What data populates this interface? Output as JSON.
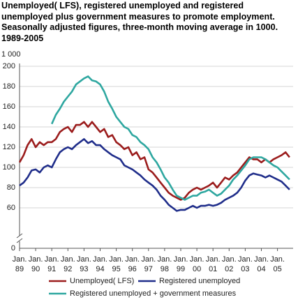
{
  "chart_data": {
    "type": "line",
    "title": "Unemployed( LFS), registered unemployed and registered unemployed plus government measures to promote employment. Seasonally adjusted figures, three-month moving average in 1000. 1989-2005",
    "y_unit_label": "1 000",
    "categories": [
      "Jan. 89",
      null,
      null,
      null,
      "Jan. 90",
      null,
      null,
      null,
      "Jan. 91",
      null,
      null,
      null,
      "Jan. 92",
      null,
      null,
      null,
      "Jan. 93",
      null,
      null,
      null,
      "Jan. 94",
      null,
      null,
      null,
      "Jan. 95",
      null,
      null,
      null,
      "Jan. 96",
      null,
      null,
      null,
      "Jan. 97",
      null,
      null,
      null,
      "Jan. 98",
      null,
      null,
      null,
      "Jan. 99",
      null,
      null,
      null,
      "Jan. 00",
      null,
      null,
      null,
      "Jan. 01",
      null,
      null,
      null,
      "Jan. 02",
      null,
      null,
      null,
      "Jan. 03",
      null,
      null,
      null,
      "Jan. 04",
      null,
      null,
      null,
      "Jan. 05",
      null,
      null,
      null
    ],
    "series": [
      {
        "name": "Unemployed( LFS)",
        "color": "#9b1c1c",
        "values": [
          105,
          112,
          122,
          128,
          120,
          125,
          122,
          125,
          125,
          128,
          135,
          138,
          140,
          135,
          142,
          142,
          145,
          140,
          145,
          140,
          135,
          138,
          130,
          132,
          125,
          122,
          118,
          120,
          112,
          115,
          108,
          110,
          98,
          95,
          90,
          85,
          80,
          75,
          72,
          70,
          68,
          70,
          75,
          78,
          80,
          78,
          80,
          82,
          85,
          80,
          85,
          90,
          88,
          92,
          95,
          100,
          105,
          110,
          108,
          108,
          105,
          108,
          105,
          108,
          110,
          112,
          115,
          110
        ]
      },
      {
        "name": "Registered unemployed",
        "color": "#1f2d8a",
        "values": [
          82,
          85,
          90,
          97,
          98,
          95,
          100,
          102,
          100,
          108,
          115,
          118,
          120,
          118,
          122,
          125,
          128,
          124,
          126,
          122,
          122,
          118,
          115,
          112,
          110,
          108,
          102,
          100,
          98,
          95,
          92,
          88,
          85,
          82,
          78,
          72,
          68,
          63,
          60,
          57,
          58,
          58,
          60,
          62,
          60,
          62,
          62,
          63,
          62,
          63,
          65,
          68,
          70,
          72,
          75,
          80,
          87,
          92,
          94,
          93,
          92,
          90,
          92,
          90,
          88,
          86,
          82,
          78
        ]
      },
      {
        "name": "Registered unemployed + government measures",
        "color": "#2ea7a0",
        "values": [
          null,
          null,
          null,
          null,
          null,
          null,
          null,
          null,
          143,
          152,
          158,
          165,
          170,
          175,
          182,
          185,
          188,
          190,
          186,
          185,
          182,
          175,
          165,
          158,
          150,
          145,
          140,
          138,
          132,
          130,
          125,
          122,
          118,
          110,
          105,
          98,
          90,
          85,
          78,
          72,
          70,
          68,
          70,
          72,
          72,
          75,
          76,
          78,
          75,
          72,
          74,
          78,
          82,
          88,
          92,
          97,
          102,
          108,
          110,
          110,
          110,
          108,
          105,
          102,
          100,
          96,
          92,
          88
        ]
      }
    ],
    "ylim": [
      0,
      200
    ],
    "yticks": [
      0,
      60,
      80,
      100,
      120,
      140,
      160,
      180,
      200
    ],
    "ybreak": [
      0,
      20
    ],
    "grid": true
  }
}
